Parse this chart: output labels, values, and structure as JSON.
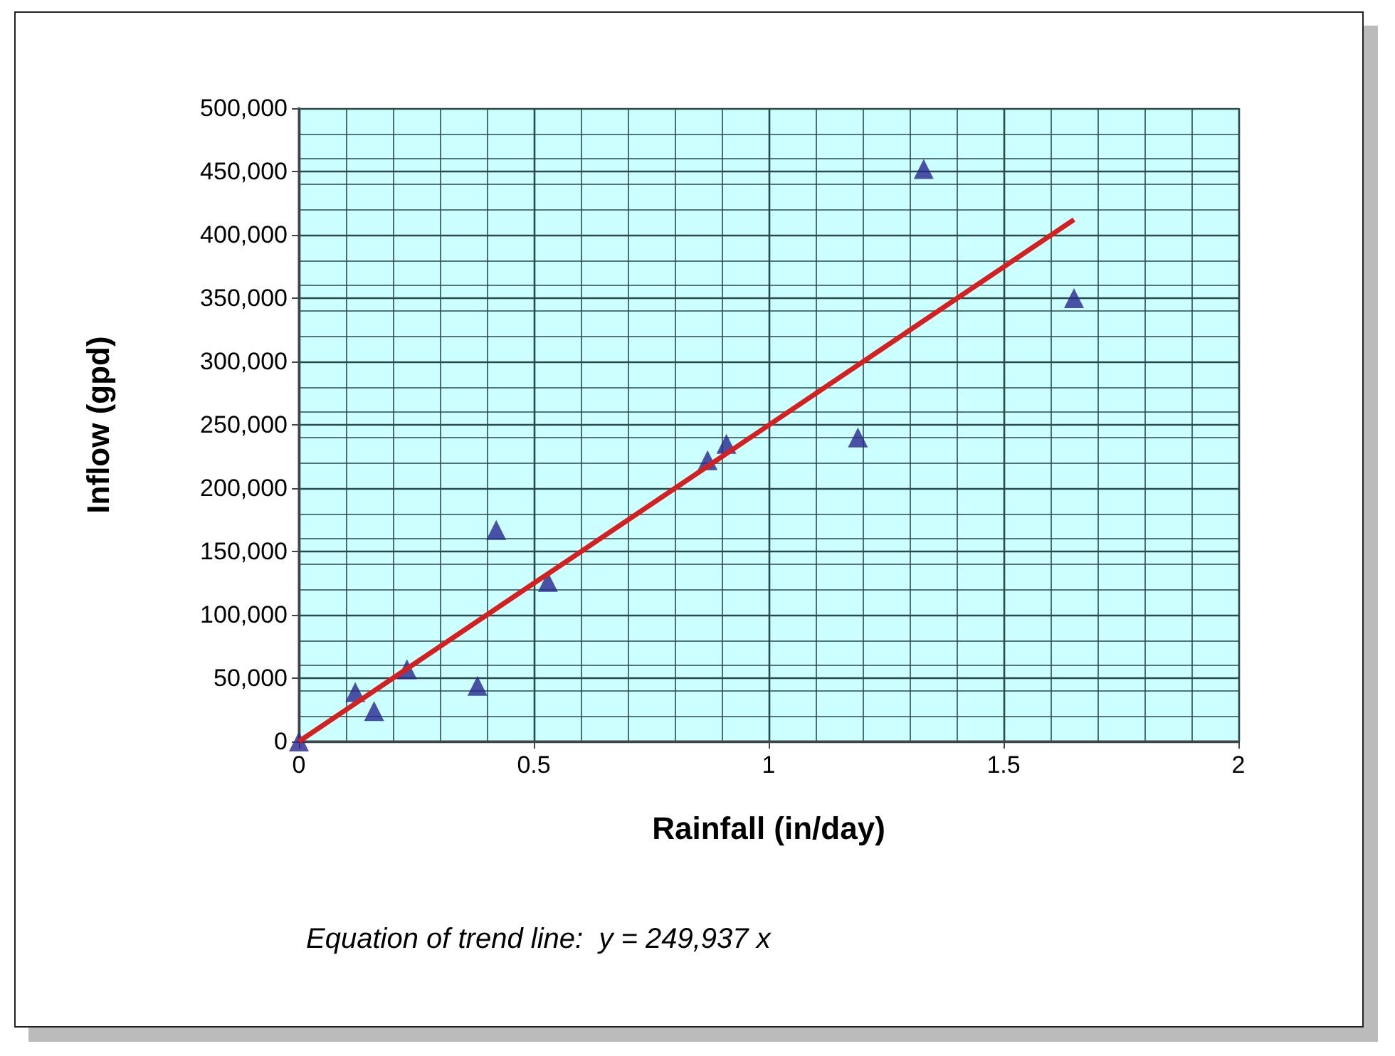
{
  "chart_data": {
    "type": "scatter",
    "xlabel": "Rainfall (in/day)",
    "ylabel": "Inflow (gpd)",
    "annotations": [
      "Equation of trend line:  y = 249,937 x"
    ],
    "xlim": [
      0,
      2
    ],
    "xticks": [
      0,
      0.5,
      1,
      1.5,
      2
    ],
    "ylim": [
      0,
      500000
    ],
    "yticks": [
      {
        "value": 0,
        "label": "0"
      },
      {
        "value": 50000,
        "label": "50,000"
      },
      {
        "value": 100000,
        "label": "100,000"
      },
      {
        "value": 150000,
        "label": "150,000"
      },
      {
        "value": 200000,
        "label": "200,000"
      },
      {
        "value": 250000,
        "label": "250,000"
      },
      {
        "value": 300000,
        "label": "300,000"
      },
      {
        "value": 350000,
        "label": "350,000"
      },
      {
        "value": 400000,
        "label": "400,000"
      },
      {
        "value": 450000,
        "label": "450,000"
      },
      {
        "value": 500000,
        "label": "500,000"
      }
    ],
    "grid": true,
    "marker": "triangle",
    "series": [
      {
        "color": "#27278f",
        "x": [
          0,
          0.12,
          0.16,
          0.23,
          0.38,
          0.42,
          0.53,
          0.87,
          0.91,
          1.19,
          1.33,
          1.65
        ],
        "values": [
          0,
          39000,
          24000,
          57000,
          44000,
          167000,
          126000,
          222000,
          235000,
          240000,
          452000,
          350000
        ]
      },
      {
        "type": "line",
        "color": "#d42020",
        "marker": "none",
        "line_style": "solid",
        "x": [
          0,
          1.65
        ],
        "values": [
          0,
          412000
        ]
      }
    ]
  }
}
